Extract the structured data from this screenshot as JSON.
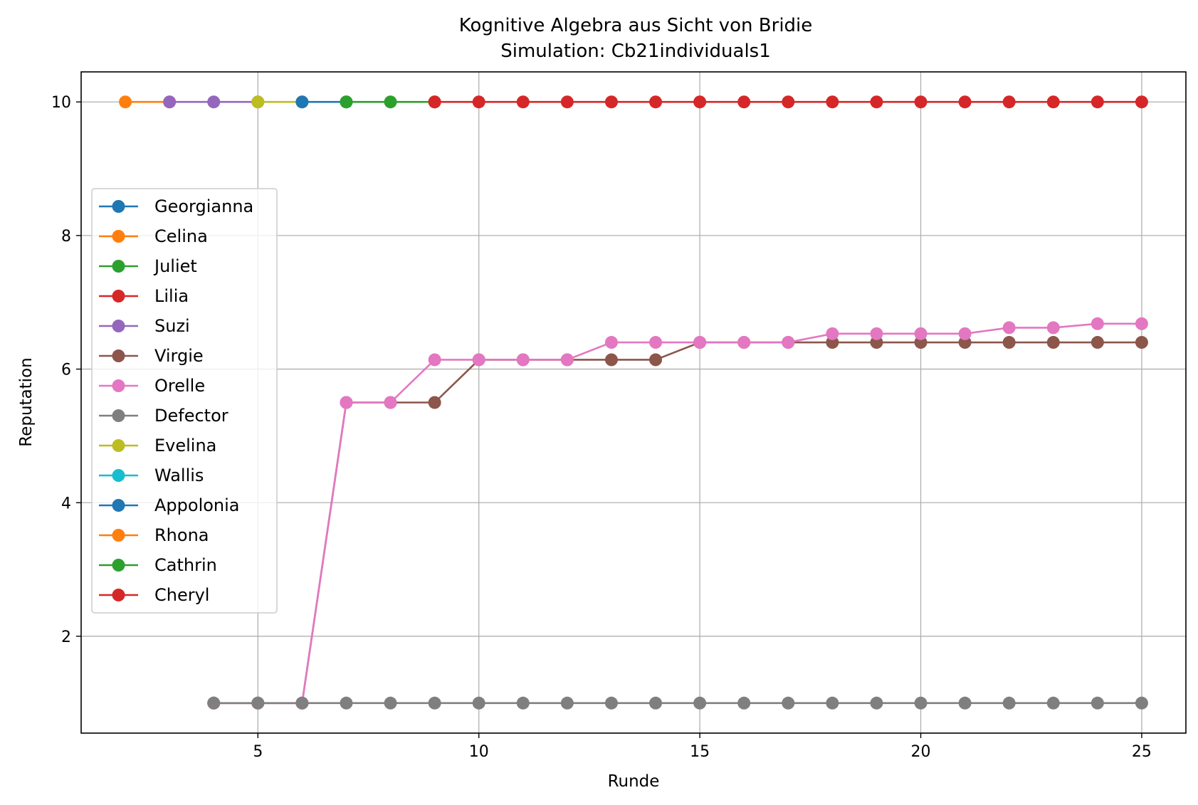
{
  "chart_data": {
    "type": "line",
    "title": "Kognitive Algebra aus Sicht von Bridie",
    "subtitle": "Simulation: Cb21individuals1",
    "xlabel": "Runde",
    "ylabel": "Reputation",
    "xlim": [
      1,
      26
    ],
    "ylim": [
      0.55,
      10.45
    ],
    "xticks": [
      5,
      10,
      15,
      20,
      25
    ],
    "yticks": [
      2,
      4,
      6,
      8,
      10
    ],
    "grid": true,
    "legend_position": "center-left",
    "series": [
      {
        "name": "Georgianna",
        "color": "#1f77b4",
        "x": [],
        "y": []
      },
      {
        "name": "Celina",
        "color": "#ff7f0e",
        "x": [
          2,
          3
        ],
        "y": [
          10,
          10
        ]
      },
      {
        "name": "Juliet",
        "color": "#2ca02c",
        "x": [],
        "y": []
      },
      {
        "name": "Lilia",
        "color": "#d62728",
        "x": [],
        "y": []
      },
      {
        "name": "Suzi",
        "color": "#9467bd",
        "x": [
          3,
          4,
          5
        ],
        "y": [
          10,
          10,
          10
        ]
      },
      {
        "name": "Virgie",
        "color": "#8c564b",
        "x": [
          4,
          5,
          6,
          7,
          8,
          9,
          10,
          11,
          12,
          13,
          14,
          15,
          16,
          17,
          18,
          19,
          20,
          21,
          22,
          23,
          24,
          25
        ],
        "y": [
          1,
          1,
          1,
          5.5,
          5.5,
          5.5,
          6.14,
          6.14,
          6.14,
          6.14,
          6.14,
          6.4,
          6.4,
          6.4,
          6.4,
          6.4,
          6.4,
          6.4,
          6.4,
          6.4,
          6.4,
          6.4
        ]
      },
      {
        "name": "Orelle",
        "color": "#e377c2",
        "x": [
          4,
          5,
          6,
          7,
          8,
          9,
          10,
          11,
          12,
          13,
          14,
          15,
          16,
          17,
          18,
          19,
          20,
          21,
          22,
          23,
          24,
          25
        ],
        "y": [
          1,
          1,
          1,
          5.5,
          5.5,
          6.14,
          6.14,
          6.14,
          6.14,
          6.4,
          6.4,
          6.4,
          6.4,
          6.4,
          6.53,
          6.53,
          6.53,
          6.53,
          6.62,
          6.62,
          6.68,
          6.68
        ]
      },
      {
        "name": "Defector",
        "color": "#7f7f7f",
        "x": [
          4,
          5,
          6,
          7,
          8,
          9,
          10,
          11,
          12,
          13,
          14,
          15,
          16,
          17,
          18,
          19,
          20,
          21,
          22,
          23,
          24,
          25
        ],
        "y": [
          1,
          1,
          1,
          1,
          1,
          1,
          1,
          1,
          1,
          1,
          1,
          1,
          1,
          1,
          1,
          1,
          1,
          1,
          1,
          1,
          1,
          1
        ]
      },
      {
        "name": "Evelina",
        "color": "#bcbd22",
        "x": [
          5,
          6
        ],
        "y": [
          10,
          10
        ]
      },
      {
        "name": "Wallis",
        "color": "#17becf",
        "x": [],
        "y": []
      },
      {
        "name": "Appolonia",
        "color": "#1f77b4",
        "x": [
          6,
          7
        ],
        "y": [
          10,
          10
        ]
      },
      {
        "name": "Rhona",
        "color": "#ff7f0e",
        "x": [],
        "y": []
      },
      {
        "name": "Cathrin",
        "color": "#2ca02c",
        "x": [
          7,
          8,
          9
        ],
        "y": [
          10,
          10,
          10
        ]
      },
      {
        "name": "Cheryl",
        "color": "#d62728",
        "x": [
          9,
          10,
          11,
          12,
          13,
          14,
          15,
          16,
          17,
          18,
          19,
          20,
          21,
          22,
          23,
          24,
          25
        ],
        "y": [
          10,
          10,
          10,
          10,
          10,
          10,
          10,
          10,
          10,
          10,
          10,
          10,
          10,
          10,
          10,
          10,
          10
        ]
      }
    ]
  }
}
